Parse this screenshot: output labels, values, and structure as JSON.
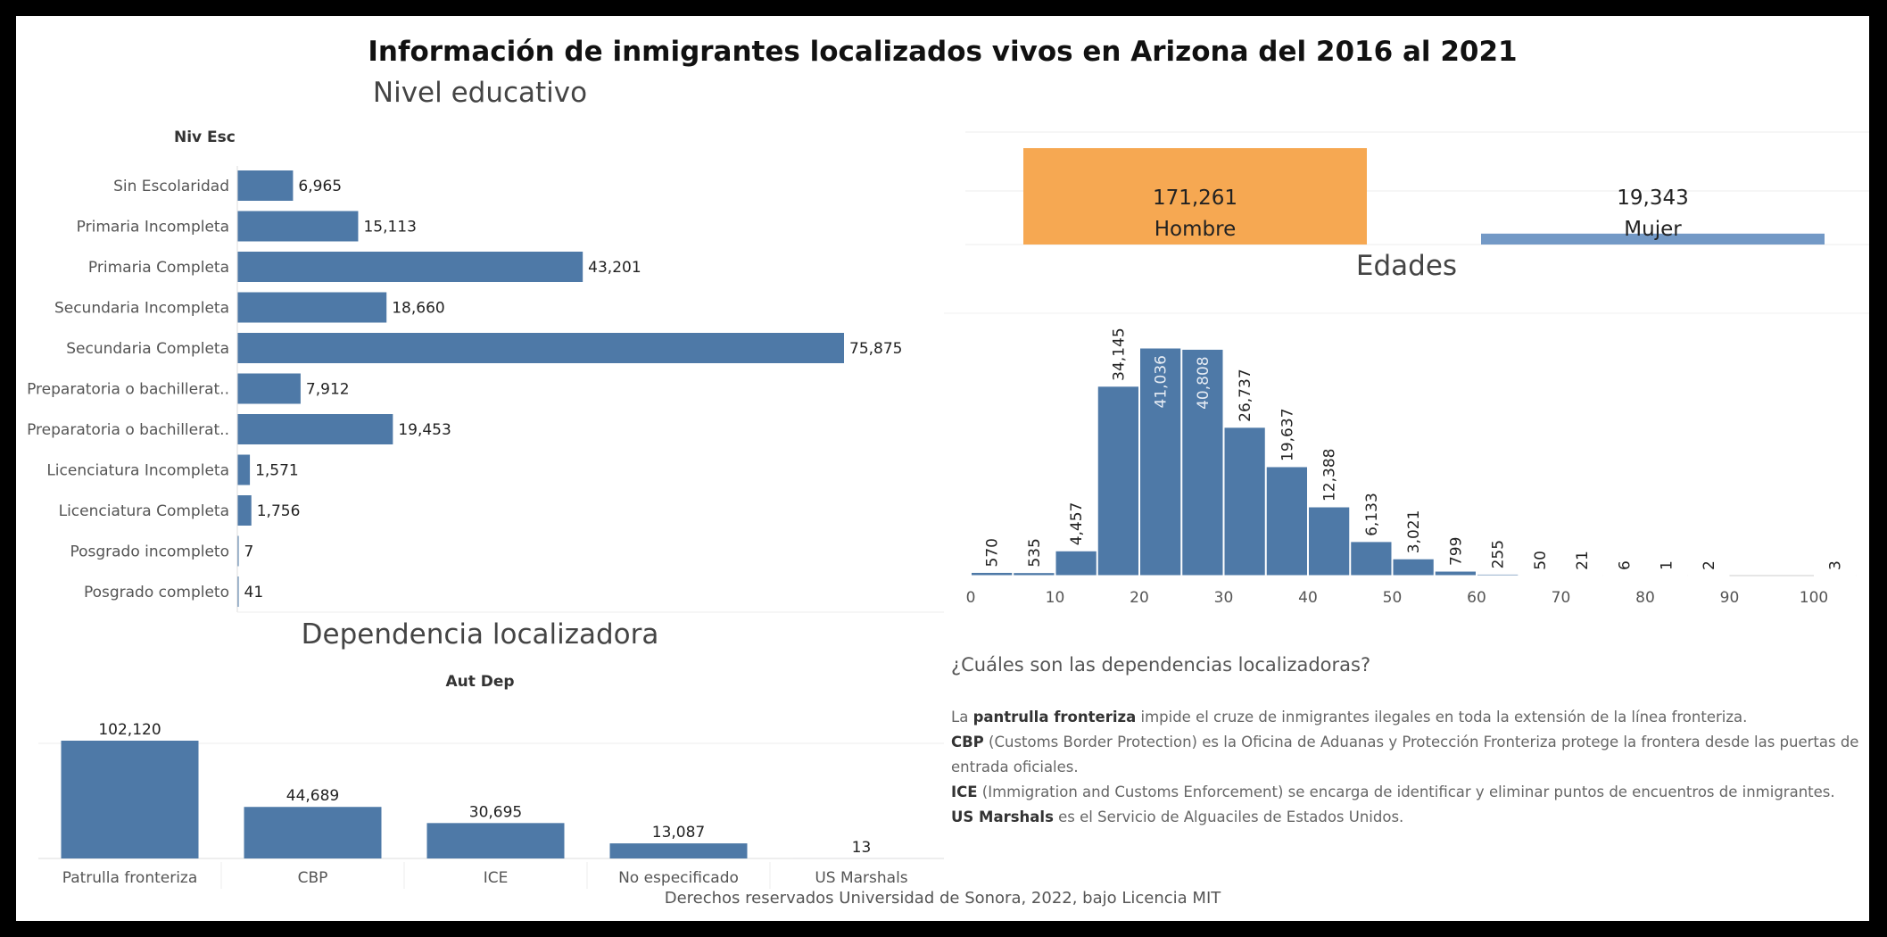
{
  "title": "Información de inmigrantes localizados vivos en Arizona del 2016 al 2021",
  "footer": "Derechos reservados Universidad de Sonora, 2022, bajo Licencia MIT",
  "colors": {
    "bar": "#4e79a7",
    "hombre": "#f6a852",
    "mujer": "#7399c6"
  },
  "info": {
    "title": "¿Cuáles son las dependencias localizadoras?",
    "paragraphs": [
      {
        "pre": "La ",
        "bold": "pantrulla fronteriza",
        "post": " impide el cruze de inmigrantes ilegales en toda la extensión de la línea fronteriza."
      },
      {
        "pre": "",
        "bold": "CBP",
        "post": " (Customs Border Protection)  es la Oficina de Aduanas y Protección Fronteriza protege la frontera desde las puertas de entrada oficiales."
      },
      {
        "pre": "",
        "bold": "ICE",
        "post": " (Immigration and Customs Enforcement) se encarga de identificar y eliminar puntos de encuentros de inmigrantes."
      },
      {
        "pre": "",
        "bold": "US Marshals",
        "post": " es el Servicio de Alguaciles de Estados Unidos."
      }
    ]
  },
  "chart_data": [
    {
      "type": "bar",
      "orientation": "horizontal",
      "title": "Nivel educativo",
      "field_header": "Niv Esc",
      "categories": [
        "Sin Escolaridad",
        "Primaria Incompleta",
        "Primaria Completa",
        "Secundaria Incompleta",
        "Secundaria Completa",
        "Preparatoria o bachillerat..",
        "Preparatoria o bachillerat..",
        "Licenciatura Incompleta",
        "Licenciatura Completa",
        "Posgrado incompleto",
        "Posgrado completo"
      ],
      "values": [
        6965,
        15113,
        43201,
        18660,
        75875,
        7912,
        19453,
        1571,
        1756,
        7,
        41
      ],
      "value_labels": [
        "6,965",
        "15,113",
        "43,201",
        "18,660",
        "75,875",
        "7,912",
        "19,453",
        "1,571",
        "1,756",
        "7",
        "41"
      ]
    },
    {
      "type": "bar",
      "orientation": "vertical",
      "title": "",
      "categories": [
        "Hombre",
        "Mujer"
      ],
      "values": [
        171261,
        19343
      ],
      "value_labels": [
        "171,261",
        "19,343"
      ]
    },
    {
      "type": "bar",
      "orientation": "vertical",
      "subtype": "histogram",
      "title": "Edades",
      "bin_width": 5,
      "x": [
        0,
        5,
        10,
        15,
        20,
        25,
        30,
        35,
        40,
        45,
        50,
        55,
        60,
        65,
        70,
        75,
        80,
        85,
        90,
        95,
        100
      ],
      "values": [
        570,
        535,
        4457,
        34145,
        41036,
        40808,
        26737,
        19637,
        12388,
        6133,
        3021,
        799,
        255,
        50,
        21,
        6,
        1,
        2,
        null,
        null,
        3
      ],
      "value_labels": [
        "570",
        "535",
        "4,457",
        "34,145",
        "41,036",
        "40,808",
        "26,737",
        "19,637",
        "12,388",
        "6,133",
        "3,021",
        "799",
        "255",
        "50",
        "21",
        "6",
        "1",
        "2",
        "",
        "",
        "3"
      ],
      "x_ticks": [
        0,
        10,
        20,
        30,
        40,
        50,
        60,
        70,
        80,
        90,
        100
      ],
      "xlim": [
        0,
        105
      ]
    },
    {
      "type": "bar",
      "orientation": "vertical",
      "title": "Dependencia localizadora",
      "field_header": "Aut Dep",
      "categories": [
        "Patrulla fronteriza",
        "CBP",
        "ICE",
        "No especificado",
        "US Marshals"
      ],
      "values": [
        102120,
        44689,
        30695,
        13087,
        13
      ],
      "value_labels": [
        "102,120",
        "44,689",
        "30,695",
        "13,087",
        "13"
      ]
    }
  ]
}
